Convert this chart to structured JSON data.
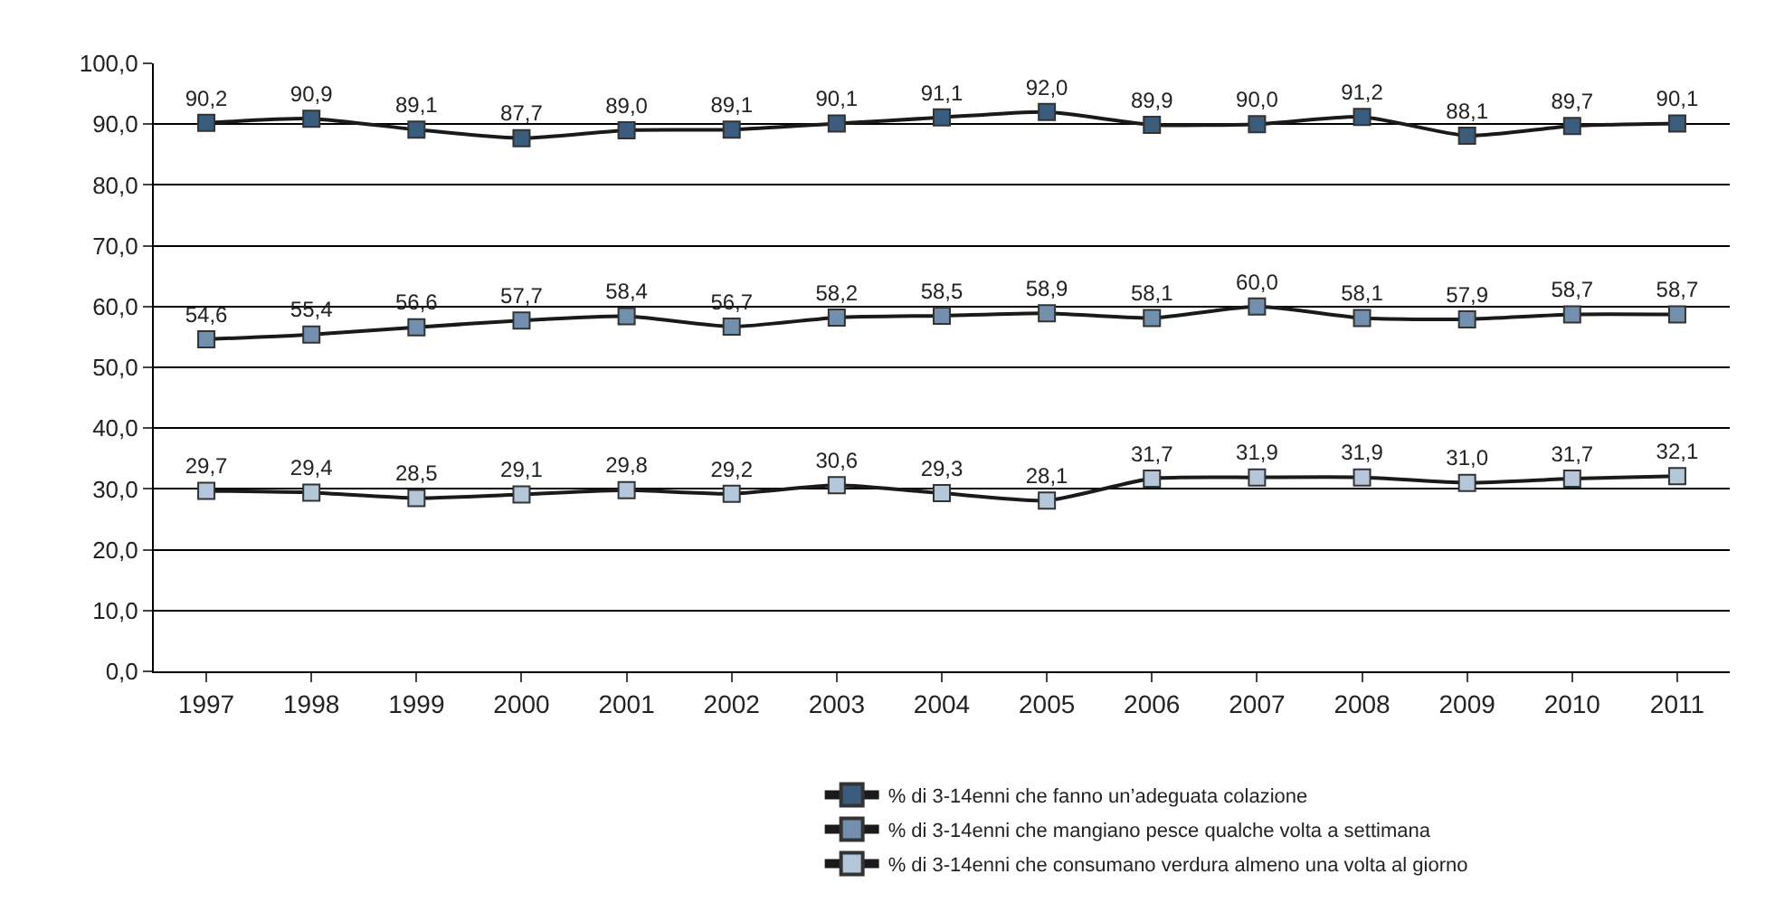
{
  "chart_data": {
    "type": "line",
    "categories": [
      "1997",
      "1998",
      "1999",
      "2000",
      "2001",
      "2002",
      "2003",
      "2004",
      "2005",
      "2006",
      "2007",
      "2008",
      "2009",
      "2010",
      "2011"
    ],
    "series": [
      {
        "name": "% di 3-14enni che fanno un’adeguata colazione",
        "color": "#3b5c7c",
        "values": [
          90.2,
          90.9,
          89.1,
          87.7,
          89.0,
          89.1,
          90.1,
          91.1,
          92.0,
          89.9,
          90.0,
          91.2,
          88.1,
          89.7,
          90.1
        ],
        "value_labels": [
          "90,2",
          "90,9",
          "89,1",
          "87,7",
          "89,0",
          "89,1",
          "90,1",
          "91,1",
          "92,0",
          "89,9",
          "90,0",
          "91,2",
          "88,1",
          "89,7",
          "90,1"
        ]
      },
      {
        "name": "% di 3-14enni che mangiano pesce qualche volta a settimana",
        "color": "#7290ae",
        "values": [
          54.6,
          55.4,
          56.6,
          57.7,
          58.4,
          56.7,
          58.2,
          58.5,
          58.9,
          58.1,
          60.0,
          58.1,
          57.9,
          58.7,
          58.7
        ],
        "value_labels": [
          "54,6",
          "55,4",
          "56,6",
          "57,7",
          "58,4",
          "56,7",
          "58,2",
          "58,5",
          "58,9",
          "58,1",
          "60,0",
          "58,1",
          "57,9",
          "58,7",
          "58,7"
        ]
      },
      {
        "name": "% di 3-14enni che consumano verdura almeno una volta al giorno",
        "color": "#b4c6da",
        "values": [
          29.7,
          29.4,
          28.5,
          29.1,
          29.8,
          29.2,
          30.6,
          29.3,
          28.1,
          31.7,
          31.9,
          31.9,
          31.0,
          31.7,
          32.1
        ],
        "value_labels": [
          "29,7",
          "29,4",
          "28,5",
          "29,1",
          "29,8",
          "29,2",
          "30,6",
          "29,3",
          "28,1",
          "31,7",
          "31,9",
          "31,9",
          "31,0",
          "31,7",
          "32,1"
        ]
      }
    ],
    "ylim": [
      0,
      100
    ],
    "yticks": [
      {
        "value": 0,
        "label": "0,0"
      },
      {
        "value": 10,
        "label": "10,0"
      },
      {
        "value": 20,
        "label": "20,0"
      },
      {
        "value": 30,
        "label": "30,0"
      },
      {
        "value": 40,
        "label": "40,0"
      },
      {
        "value": 50,
        "label": "50,0"
      },
      {
        "value": 60,
        "label": "60,0"
      },
      {
        "value": 70,
        "label": "70,0"
      },
      {
        "value": 80,
        "label": "80,0"
      },
      {
        "value": 90,
        "label": "90,0"
      },
      {
        "value": 100,
        "label": "100,0"
      }
    ],
    "grid": "y",
    "legend": "bottom",
    "marker": "square",
    "line_style": "solid"
  }
}
